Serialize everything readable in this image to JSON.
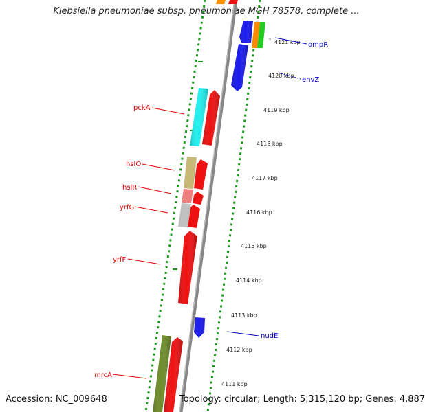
{
  "title": "Klebsiella pneumoniae subsp. pneumoniae MGH 78578, complete ...",
  "footer": {
    "accession": "Accession: NC_009648",
    "topology": "Topology: circular; Length: 5,315,120 bp; Genes: 4,887"
  },
  "scale_labels": [
    "4121 kbp",
    "4120 kbp",
    "4119 kbp",
    "4118 kbp",
    "4117 kbp",
    "4116 kbp",
    "4115 kbp",
    "4114 kbp",
    "4113 kbp",
    "4112 kbp",
    "4111 kbp"
  ],
  "colors": {
    "forward_label": "#e00000",
    "reverse_label": "#0000cc",
    "backbone": "#888888",
    "dots": "#1a9a1a"
  },
  "genes": [
    {
      "name": "ompR",
      "strand": "reverse"
    },
    {
      "name": "envZ",
      "strand": "reverse"
    },
    {
      "name": "pckA",
      "strand": "forward"
    },
    {
      "name": "hslO",
      "strand": "forward"
    },
    {
      "name": "hslR",
      "strand": "forward"
    },
    {
      "name": "yrfG",
      "strand": "forward"
    },
    {
      "name": "yrfF",
      "strand": "forward"
    },
    {
      "name": "nudE",
      "strand": "reverse"
    },
    {
      "name": "mrcA",
      "strand": "forward"
    }
  ]
}
